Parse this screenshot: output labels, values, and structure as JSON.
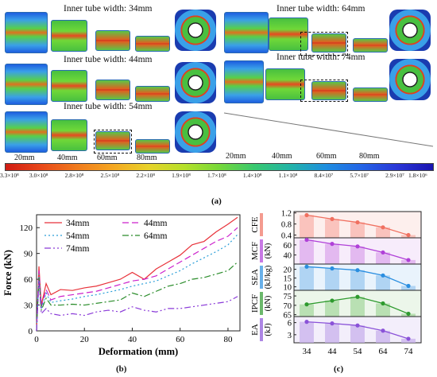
{
  "panel_a": {
    "titles": [
      "Inner tube width: 34mm",
      "Inner tube width: 44mm",
      "Inner tube width: 54mm",
      "Inner tube width: 64mm",
      "Inner tube width: 74mm"
    ],
    "deformation_labels_left": [
      "20mm",
      "40mm",
      "60mm",
      "80mm"
    ],
    "deformation_labels_right": [
      "20mm",
      "40mm",
      "60mm",
      "80mm"
    ],
    "colorbar_ticks": [
      "3.3×10⁸",
      "3.0×10⁸",
      "2.8×10⁸",
      "2.5×10⁸",
      "2.2×10⁸",
      "1.9×10⁸",
      "1.7×10⁸",
      "1.4×10⁸",
      "1.1×10⁸",
      "8.4×10⁷",
      "5.7×10⁷",
      "2.9×10⁷",
      "1.8×10⁶"
    ],
    "colorbar_colors": [
      "#d01c14",
      "#e8481a",
      "#f07a1d",
      "#f4a621",
      "#e8d22a",
      "#b6e02a",
      "#76d83a",
      "#38c870",
      "#22b4a8",
      "#1e8ee0",
      "#2464e6",
      "#2a36d6",
      "#1a14b0"
    ],
    "caption": "(a)"
  },
  "panel_b": {
    "caption": "(b)",
    "chart_data": {
      "type": "line",
      "xlabel": "Deformation (mm)",
      "ylabel": "Force (kN)",
      "xlim": [
        0,
        85
      ],
      "ylim": [
        0,
        135
      ],
      "xticks": [
        0,
        20,
        40,
        60,
        80
      ],
      "yticks": [
        0,
        30,
        60,
        90,
        120
      ],
      "legend_placement": "top-left",
      "series": [
        {
          "name": "34mm",
          "color": "#e8323a",
          "dash": "solid",
          "x": [
            0,
            1,
            2,
            4,
            6,
            10,
            15,
            20,
            25,
            30,
            35,
            40,
            45,
            50,
            55,
            60,
            65,
            70,
            75,
            80,
            84
          ],
          "y": [
            0,
            75,
            30,
            55,
            42,
            48,
            47,
            50,
            52,
            56,
            60,
            68,
            60,
            72,
            80,
            88,
            100,
            104,
            115,
            124,
            132
          ]
        },
        {
          "name": "44mm",
          "color": "#cc22cc",
          "dash": "8,4",
          "x": [
            0,
            1,
            2,
            4,
            6,
            10,
            15,
            20,
            25,
            30,
            35,
            40,
            45,
            50,
            55,
            60,
            65,
            70,
            75,
            80,
            84
          ],
          "y": [
            0,
            70,
            28,
            48,
            36,
            40,
            42,
            44,
            46,
            50,
            54,
            58,
            60,
            64,
            72,
            80,
            88,
            96,
            104,
            110,
            120
          ]
        },
        {
          "name": "54mm",
          "color": "#2a9ed8",
          "dash": "2,3",
          "x": [
            0,
            1,
            2,
            4,
            6,
            10,
            15,
            20,
            25,
            30,
            35,
            40,
            45,
            50,
            55,
            60,
            65,
            70,
            75,
            80,
            84
          ],
          "y": [
            0,
            66,
            26,
            44,
            33,
            35,
            37,
            40,
            42,
            45,
            48,
            52,
            55,
            58,
            64,
            70,
            78,
            85,
            92,
            100,
            112
          ]
        },
        {
          "name": "64mm",
          "color": "#2a8c2a",
          "dash": "8,3,2,3",
          "x": [
            0,
            1,
            2,
            4,
            6,
            10,
            15,
            20,
            25,
            30,
            35,
            40,
            45,
            50,
            55,
            60,
            65,
            70,
            75,
            80,
            84
          ],
          "y": [
            0,
            62,
            24,
            38,
            30,
            30,
            31,
            30,
            32,
            34,
            36,
            44,
            40,
            46,
            52,
            55,
            60,
            62,
            66,
            70,
            80
          ]
        },
        {
          "name": "74mm",
          "color": "#8a3ad8",
          "dash": "8,3,2,3,2,3",
          "x": [
            0,
            1,
            2,
            4,
            6,
            10,
            15,
            20,
            25,
            30,
            35,
            40,
            45,
            50,
            55,
            60,
            65,
            70,
            75,
            80,
            84
          ],
          "y": [
            0,
            58,
            20,
            26,
            20,
            18,
            20,
            18,
            22,
            24,
            22,
            28,
            24,
            22,
            26,
            26,
            28,
            30,
            32,
            34,
            40
          ]
        }
      ]
    }
  },
  "panel_c": {
    "caption": "(c)",
    "chart_data": {
      "type": "bar",
      "categories": [
        "34",
        "44",
        "54",
        "64",
        "74"
      ],
      "rows": [
        {
          "name": "CFE",
          "unit": "",
          "color": "#f07060",
          "fill": "#f8b4ac",
          "yticks": [
            "1.2",
            "0.8",
            "0.4"
          ],
          "ylim": [
            0.3,
            1.25
          ],
          "values": [
            1.12,
            0.98,
            0.86,
            0.68,
            0.4
          ]
        },
        {
          "name": "MCF",
          "unit": "(kN)",
          "color": "#b040d8",
          "fill": "#dca8ec",
          "yticks": [
            "60",
            "40"
          ],
          "ylim": [
            22,
            74
          ],
          "values": [
            70,
            62,
            57,
            45,
            30
          ]
        },
        {
          "name": "SEA",
          "unit": "(kJ/kg)",
          "color": "#2a8ee0",
          "fill": "#9ccaf0",
          "yticks": [
            "20",
            "15",
            "10"
          ],
          "ylim": [
            8,
            23
          ],
          "values": [
            21.5,
            20.5,
            19.5,
            16.5,
            10.5
          ]
        },
        {
          "name": "IPCF",
          "unit": "(kN)",
          "color": "#2e9a2e",
          "fill": "#a8d8a0",
          "yticks": [
            "75",
            "70",
            "65"
          ],
          "ylim": [
            64,
            78
          ],
          "values": [
            70.5,
            72.5,
            74.5,
            71.0,
            65.5
          ]
        },
        {
          "name": "EA",
          "unit": "(kJ)",
          "color": "#8a52d8",
          "fill": "#c8b0ec",
          "yticks": [
            "6",
            "3"
          ],
          "ylim": [
            1,
            7.5
          ],
          "values": [
            6.2,
            5.8,
            5.3,
            4.0,
            2.0
          ]
        }
      ]
    }
  }
}
